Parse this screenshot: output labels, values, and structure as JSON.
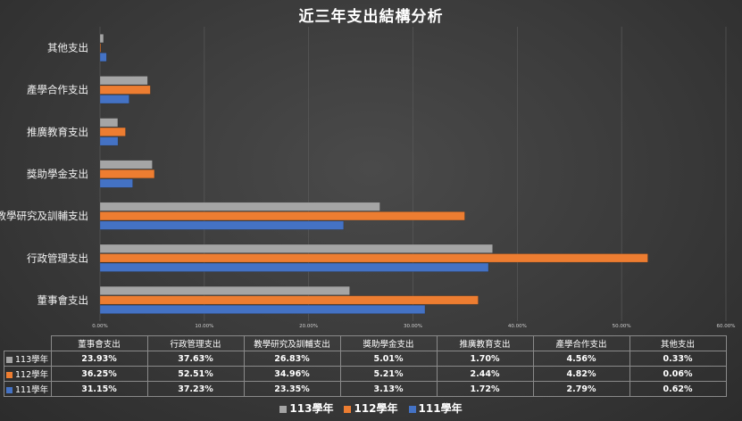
{
  "chart_data": {
    "type": "bar",
    "orientation": "horizontal",
    "title": "近三年支出結構分析",
    "categories": [
      "董事會支出",
      "行政管理支出",
      "教學研究及訓輔支出",
      "獎助學金支出",
      "推廣教育支出",
      "產學合作支出",
      "其他支出"
    ],
    "xlim": [
      0,
      60
    ],
    "x_ticks": [
      "0.00%",
      "10.00%",
      "20.00%",
      "30.00%",
      "40.00%",
      "50.00%",
      "60.00%"
    ],
    "grid": true,
    "legend_position": "bottom",
    "series": [
      {
        "name": "113學年",
        "color": "#a5a5a5",
        "values": [
          23.93,
          37.63,
          26.83,
          5.01,
          1.7,
          4.56,
          0.33
        ],
        "labels": [
          "23.93%",
          "37.63%",
          "26.83%",
          "5.01%",
          "1.70%",
          "4.56%",
          "0.33%"
        ]
      },
      {
        "name": "112學年",
        "color": "#ed7d31",
        "values": [
          36.25,
          52.51,
          34.96,
          5.21,
          2.44,
          4.82,
          0.06
        ],
        "labels": [
          "36.25%",
          "52.51%",
          "34.96%",
          "5.21%",
          "2.44%",
          "4.82%",
          "0.06%"
        ]
      },
      {
        "name": "111學年",
        "color": "#4472c4",
        "values": [
          31.15,
          37.23,
          23.35,
          3.13,
          1.72,
          2.79,
          0.62
        ],
        "labels": [
          "31.15%",
          "37.23%",
          "23.35%",
          "3.13%",
          "1.72%",
          "2.79%",
          "0.62%"
        ]
      }
    ]
  }
}
